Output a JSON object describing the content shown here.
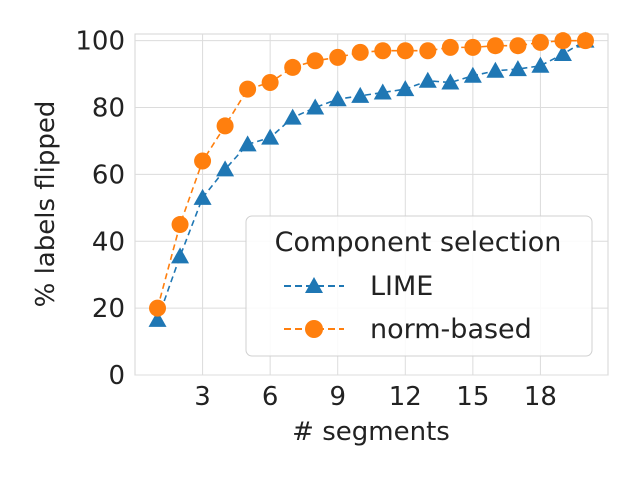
{
  "chart_data": {
    "type": "line",
    "title": "",
    "xlabel": "# segments",
    "ylabel": "% labels flipped",
    "xlim": [
      0,
      21
    ],
    "ylim": [
      0,
      102
    ],
    "xticks": [
      3,
      6,
      9,
      12,
      15,
      18
    ],
    "yticks": [
      0,
      20,
      40,
      60,
      80,
      100
    ],
    "grid": true,
    "legend": {
      "title": "Component selection",
      "placement": "lower-right"
    },
    "x": [
      1,
      2,
      3,
      4,
      5,
      6,
      7,
      8,
      9,
      10,
      11,
      12,
      13,
      14,
      15,
      16,
      17,
      18,
      19,
      20
    ],
    "series": [
      {
        "name": "LIME",
        "color": "#1f77b4",
        "marker": "triangle",
        "linestyle": "dashed",
        "values": [
          16.5,
          35.5,
          53,
          61.5,
          69,
          71,
          77,
          80,
          82.5,
          83.5,
          84.5,
          85.5,
          88,
          87.5,
          89.5,
          91,
          91.5,
          92.5,
          96,
          100
        ]
      },
      {
        "name": "norm-based",
        "color": "#ff7f0e",
        "marker": "circle",
        "linestyle": "dashed",
        "values": [
          20,
          45,
          64,
          74.5,
          85.5,
          87.5,
          92,
          94,
          95,
          96.5,
          97,
          97,
          97,
          98,
          98,
          98.5,
          98.5,
          99.5,
          100,
          100
        ]
      }
    ]
  }
}
